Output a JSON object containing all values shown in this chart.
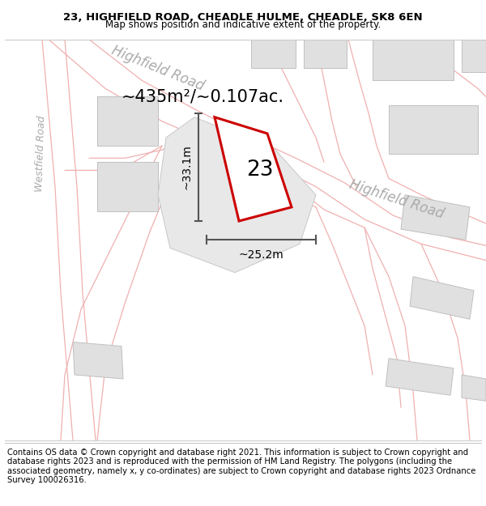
{
  "title": "23, HIGHFIELD ROAD, CHEADLE HULME, CHEADLE, SK8 6EN",
  "subtitle": "Map shows position and indicative extent of the property.",
  "footer": "Contains OS data © Crown copyright and database right 2021. This information is subject to Crown copyright and database rights 2023 and is reproduced with the permission of HM Land Registry. The polygons (including the associated geometry, namely x, y co-ordinates) are subject to Crown copyright and database rights 2023 Ordnance Survey 100026316.",
  "map_bg": "#ffffff",
  "plot_color_fill": "#ffffff",
  "plot_color_edge": "#cc0000",
  "building_fill": "#e0e0e0",
  "building_edge": "#c0c0c0",
  "road_line_color": "#f0b0b0",
  "area_text": "~435m²/~0.107ac.",
  "label_text": "23",
  "dim_width": "~25.2m",
  "dim_height": "~33.1m",
  "road_label_top": "Highfield Road",
  "road_label_right": "Highfield Road",
  "road_label_left": "Westfield Road",
  "title_fontsize": 9.5,
  "subtitle_fontsize": 8.5,
  "footer_fontsize": 7.2
}
